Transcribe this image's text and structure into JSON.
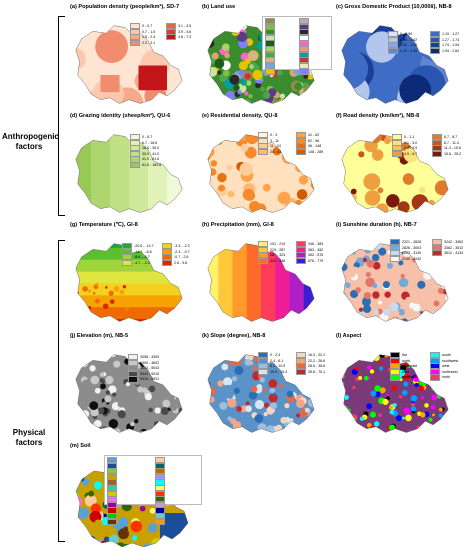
{
  "groups": {
    "anthropogenic": "Anthropogenic factors",
    "physical": "Physical factors"
  },
  "panels": {
    "a": {
      "title": "(a) Population density (people/km²), SD-7",
      "legend": [
        {
          "label": "0 - 0.7",
          "color": "#fde4d3"
        },
        {
          "label": "0.7 - 1.5",
          "color": "#fbc8ae"
        },
        {
          "label": "1.5 - 2.3",
          "color": "#f7a98b"
        },
        {
          "label": "2.3 - 3.1",
          "color": "#f28c6f"
        },
        {
          "label": "3.1 - 3.9",
          "color": "#e9644c"
        },
        {
          "label": "3.9 - 4.6",
          "color": "#dc3a2e"
        },
        {
          "label": "4.6 - 7.3",
          "color": "#c4151b"
        }
      ]
    },
    "b": {
      "title": "(b) Land use",
      "legend": [
        {
          "label": "",
          "color": "#9a8a4a"
        },
        {
          "label": "",
          "color": "#7fbf3f"
        },
        {
          "label": "",
          "color": "#3a8c2e"
        },
        {
          "label": "",
          "color": "#c8e6a0"
        },
        {
          "label": "",
          "color": "#1e5c1e"
        },
        {
          "label": "",
          "color": "#a4d65e"
        },
        {
          "label": "",
          "color": "#4aa84a"
        },
        {
          "label": "",
          "color": "#d4b483"
        },
        {
          "label": "",
          "color": "#6fa8dc"
        },
        {
          "label": "",
          "color": "#e6c200"
        },
        {
          "label": "",
          "color": "#b0b0b0"
        },
        {
          "label": "",
          "color": "#5b3a8c"
        },
        {
          "label": "",
          "color": "#2a2a2a"
        },
        {
          "label": "",
          "color": "#ffffff"
        },
        {
          "label": "",
          "color": "#ff66cc"
        },
        {
          "label": "",
          "color": "#e0a070"
        },
        {
          "label": "",
          "color": "#00a0a0"
        },
        {
          "label": "",
          "color": "#cc3333"
        },
        {
          "label": "",
          "color": "#e8e8c0"
        },
        {
          "label": "",
          "color": "#8080ff"
        }
      ]
    },
    "c": {
      "title": "(c) Gross Domestic Product (10,000¥), NB-8",
      "legend": [
        {
          "label": "0 - 0.90",
          "color": "#dbe3f5"
        },
        {
          "label": "0.90 - 1.02",
          "color": "#b4c6ec"
        },
        {
          "label": "1.02 - 1.12",
          "color": "#8aa6e0"
        },
        {
          "label": "1.12 - 1.19",
          "color": "#5e86d2"
        },
        {
          "label": "1.19 - 1.27",
          "color": "#3f6cc4"
        },
        {
          "label": "1.27 - 1.74",
          "color": "#2a55b0"
        },
        {
          "label": "1.74 - 1.94",
          "color": "#1a3f96"
        },
        {
          "label": "1.94 - 2.64",
          "color": "#0c2a78"
        }
      ]
    },
    "d": {
      "title": "(d) Grazing identity (sheep/km²), QU-6",
      "legend": [
        {
          "label": "0 - 6.7",
          "color": "#f0f9d8"
        },
        {
          "label": "6.7 - 18.6",
          "color": "#e0f2b8"
        },
        {
          "label": "18.6 - 30.0",
          "color": "#cfe99c"
        },
        {
          "label": "30.0 - 41.0",
          "color": "#bfe085"
        },
        {
          "label": "41.0 - 61.6",
          "color": "#add66e"
        },
        {
          "label": "61.6 - 169.8",
          "color": "#98c956"
        }
      ]
    },
    "e": {
      "title": "(e) Residential density, QU-8",
      "legend": [
        {
          "label": "0 - 3",
          "color": "#fff1e0"
        },
        {
          "label": "3 - 11",
          "color": "#ffe0bf"
        },
        {
          "label": "11 - 24",
          "color": "#ffcd99"
        },
        {
          "label": "24 - 41",
          "color": "#ffb870"
        },
        {
          "label": "41 - 62",
          "color": "#ffa24a"
        },
        {
          "label": "62 - 96",
          "color": "#f7892a"
        },
        {
          "label": "96 - 148",
          "color": "#ea7010"
        },
        {
          "label": "148 - 289",
          "color": "#d45a00"
        }
      ]
    },
    "f": {
      "title": "(f) Road density (km/km²), NB-8",
      "legend": [
        {
          "label": "0 - 1.1",
          "color": "#ffff99"
        },
        {
          "label": "1.1 - 3.0",
          "color": "#fbe27a"
        },
        {
          "label": "3.0 - 4.9",
          "color": "#f5c45c"
        },
        {
          "label": "4.9 - 6.7",
          "color": "#eea040"
        },
        {
          "label": "6.7 - 8.7",
          "color": "#e07b2c"
        },
        {
          "label": "8.7 - 11.4",
          "color": "#c9551e"
        },
        {
          "label": "11.4 - 15.6",
          "color": "#a63514"
        },
        {
          "label": "15.6 - 25.2",
          "color": "#7a1a0c"
        }
      ]
    },
    "g": {
      "title": "(g) Temperature (℃), GI-8",
      "legend": [
        {
          "label": "-20.6 - -14.7",
          "color": "#1fa83a"
        },
        {
          "label": "-14.7 - -8.6",
          "color": "#5cc02e"
        },
        {
          "label": "-8.6 - -4.7",
          "color": "#9fd43a"
        },
        {
          "label": "-4.7 - -3.3",
          "color": "#e0e640"
        },
        {
          "label": "-3.3 - -2.3",
          "color": "#f5d020"
        },
        {
          "label": "-2.3 - -0.7",
          "color": "#f5a300"
        },
        {
          "label": "-0.7 - 2.6",
          "color": "#ef6a00"
        },
        {
          "label": "2.6 - 9.6",
          "color": "#d92800"
        }
      ]
    },
    "h": {
      "title": "(h) Precipitation (mm), GI-8",
      "legend": [
        {
          "label": "101 - 219",
          "color": "#fff36b"
        },
        {
          "label": "219 - 287",
          "color": "#ffc83c"
        },
        {
          "label": "287 - 323",
          "color": "#ff9a2a"
        },
        {
          "label": "323 - 346",
          "color": "#ff6a2a"
        },
        {
          "label": "346 - 383",
          "color": "#ff3c5a"
        },
        {
          "label": "383 - 452",
          "color": "#f01e96"
        },
        {
          "label": "452 - 576",
          "color": "#b01ec8"
        },
        {
          "label": "576 - 779",
          "color": "#3c1ed2"
        }
      ]
    },
    "i": {
      "title": "(i) Sunshine duration (h), NB-7",
      "legend": [
        {
          "label": "2221 - 2828",
          "color": "#2a6fb5"
        },
        {
          "label": "2828 - 3003",
          "color": "#77a8d6"
        },
        {
          "label": "3003 - 3130",
          "color": "#c6dbee"
        },
        {
          "label": "3130 - 3242",
          "color": "#f7f7f7"
        },
        {
          "label": "3242 - 3362",
          "color": "#f6c1a8"
        },
        {
          "label": "3362 - 3512",
          "color": "#e3756a"
        },
        {
          "label": "3512 - 4134",
          "color": "#c0282c"
        }
      ]
    },
    "j": {
      "title": "(j) Elevation (m), NB-5",
      "legend": [
        {
          "label": "3058 - 4309",
          "color": "#f2f2f2"
        },
        {
          "label": "4309 - 4602",
          "color": "#c8c8c8"
        },
        {
          "label": "4602 - 5043",
          "color": "#8c8c8c"
        },
        {
          "label": "5043 - 5315",
          "color": "#4a4a4a"
        },
        {
          "label": "5315 - 6931",
          "color": "#0f0f0f"
        }
      ]
    },
    "k": {
      "title": "(k) Slope (degree), NB-8",
      "legend": [
        {
          "label": "0 - 2.4",
          "color": "#2a6fb5"
        },
        {
          "label": "2.4 - 6.1",
          "color": "#5b92c8"
        },
        {
          "label": "6.1 - 10.9",
          "color": "#9dbede"
        },
        {
          "label": "10.9 - 16.3",
          "color": "#d8e6f2"
        },
        {
          "label": "16.3 - 22.2",
          "color": "#f6d5c2"
        },
        {
          "label": "22.2 - 28.6",
          "color": "#f1a784"
        },
        {
          "label": "28.6 - 35.6",
          "color": "#e06a4c"
        },
        {
          "label": "35.6 - 70.1",
          "color": "#c2282c"
        }
      ]
    },
    "l": {
      "title": "(l) Aspect",
      "legend": [
        {
          "label": "flat",
          "color": "#000000"
        },
        {
          "label": "north",
          "color": "#ff0000"
        },
        {
          "label": "northeast",
          "color": "#ffa500"
        },
        {
          "label": "east",
          "color": "#ffff00"
        },
        {
          "label": "southeast",
          "color": "#00ff00"
        },
        {
          "label": "south",
          "color": "#00ffff"
        },
        {
          "label": "southwest",
          "color": "#00a0ff"
        },
        {
          "label": "west",
          "color": "#0000ff"
        },
        {
          "label": "northwest",
          "color": "#ff00ff"
        },
        {
          "label": "north",
          "color": "#ff3366"
        }
      ]
    },
    "m": {
      "title": "(m) Soil",
      "legend": [
        {
          "label": "",
          "color": "#5aa0d8"
        },
        {
          "label": "",
          "color": "#1a4e9a"
        },
        {
          "label": "",
          "color": "#8cc63f"
        },
        {
          "label": "",
          "color": "#c8a000"
        },
        {
          "label": "",
          "color": "#996633"
        },
        {
          "label": "",
          "color": "#33cc99"
        },
        {
          "label": "",
          "color": "#cccc00"
        },
        {
          "label": "",
          "color": "#ff66ff"
        },
        {
          "label": "",
          "color": "#990099"
        },
        {
          "label": "",
          "color": "#cc0000"
        },
        {
          "label": "",
          "color": "#00cc00"
        },
        {
          "label": "",
          "color": "#663300"
        },
        {
          "label": "",
          "color": "#ffcc99"
        },
        {
          "label": "",
          "color": "#006666"
        },
        {
          "label": "",
          "color": "#cc6600"
        },
        {
          "label": "",
          "color": "#9999ff"
        },
        {
          "label": "",
          "color": "#00ffff"
        },
        {
          "label": "",
          "color": "#ffff66"
        },
        {
          "label": "",
          "color": "#ff3300"
        },
        {
          "label": "",
          "color": "#336600"
        },
        {
          "label": "",
          "color": "#cc99cc"
        },
        {
          "label": "",
          "color": "#000099"
        },
        {
          "label": "",
          "color": "#66cccc"
        },
        {
          "label": "",
          "color": "#ff9900"
        }
      ]
    }
  }
}
